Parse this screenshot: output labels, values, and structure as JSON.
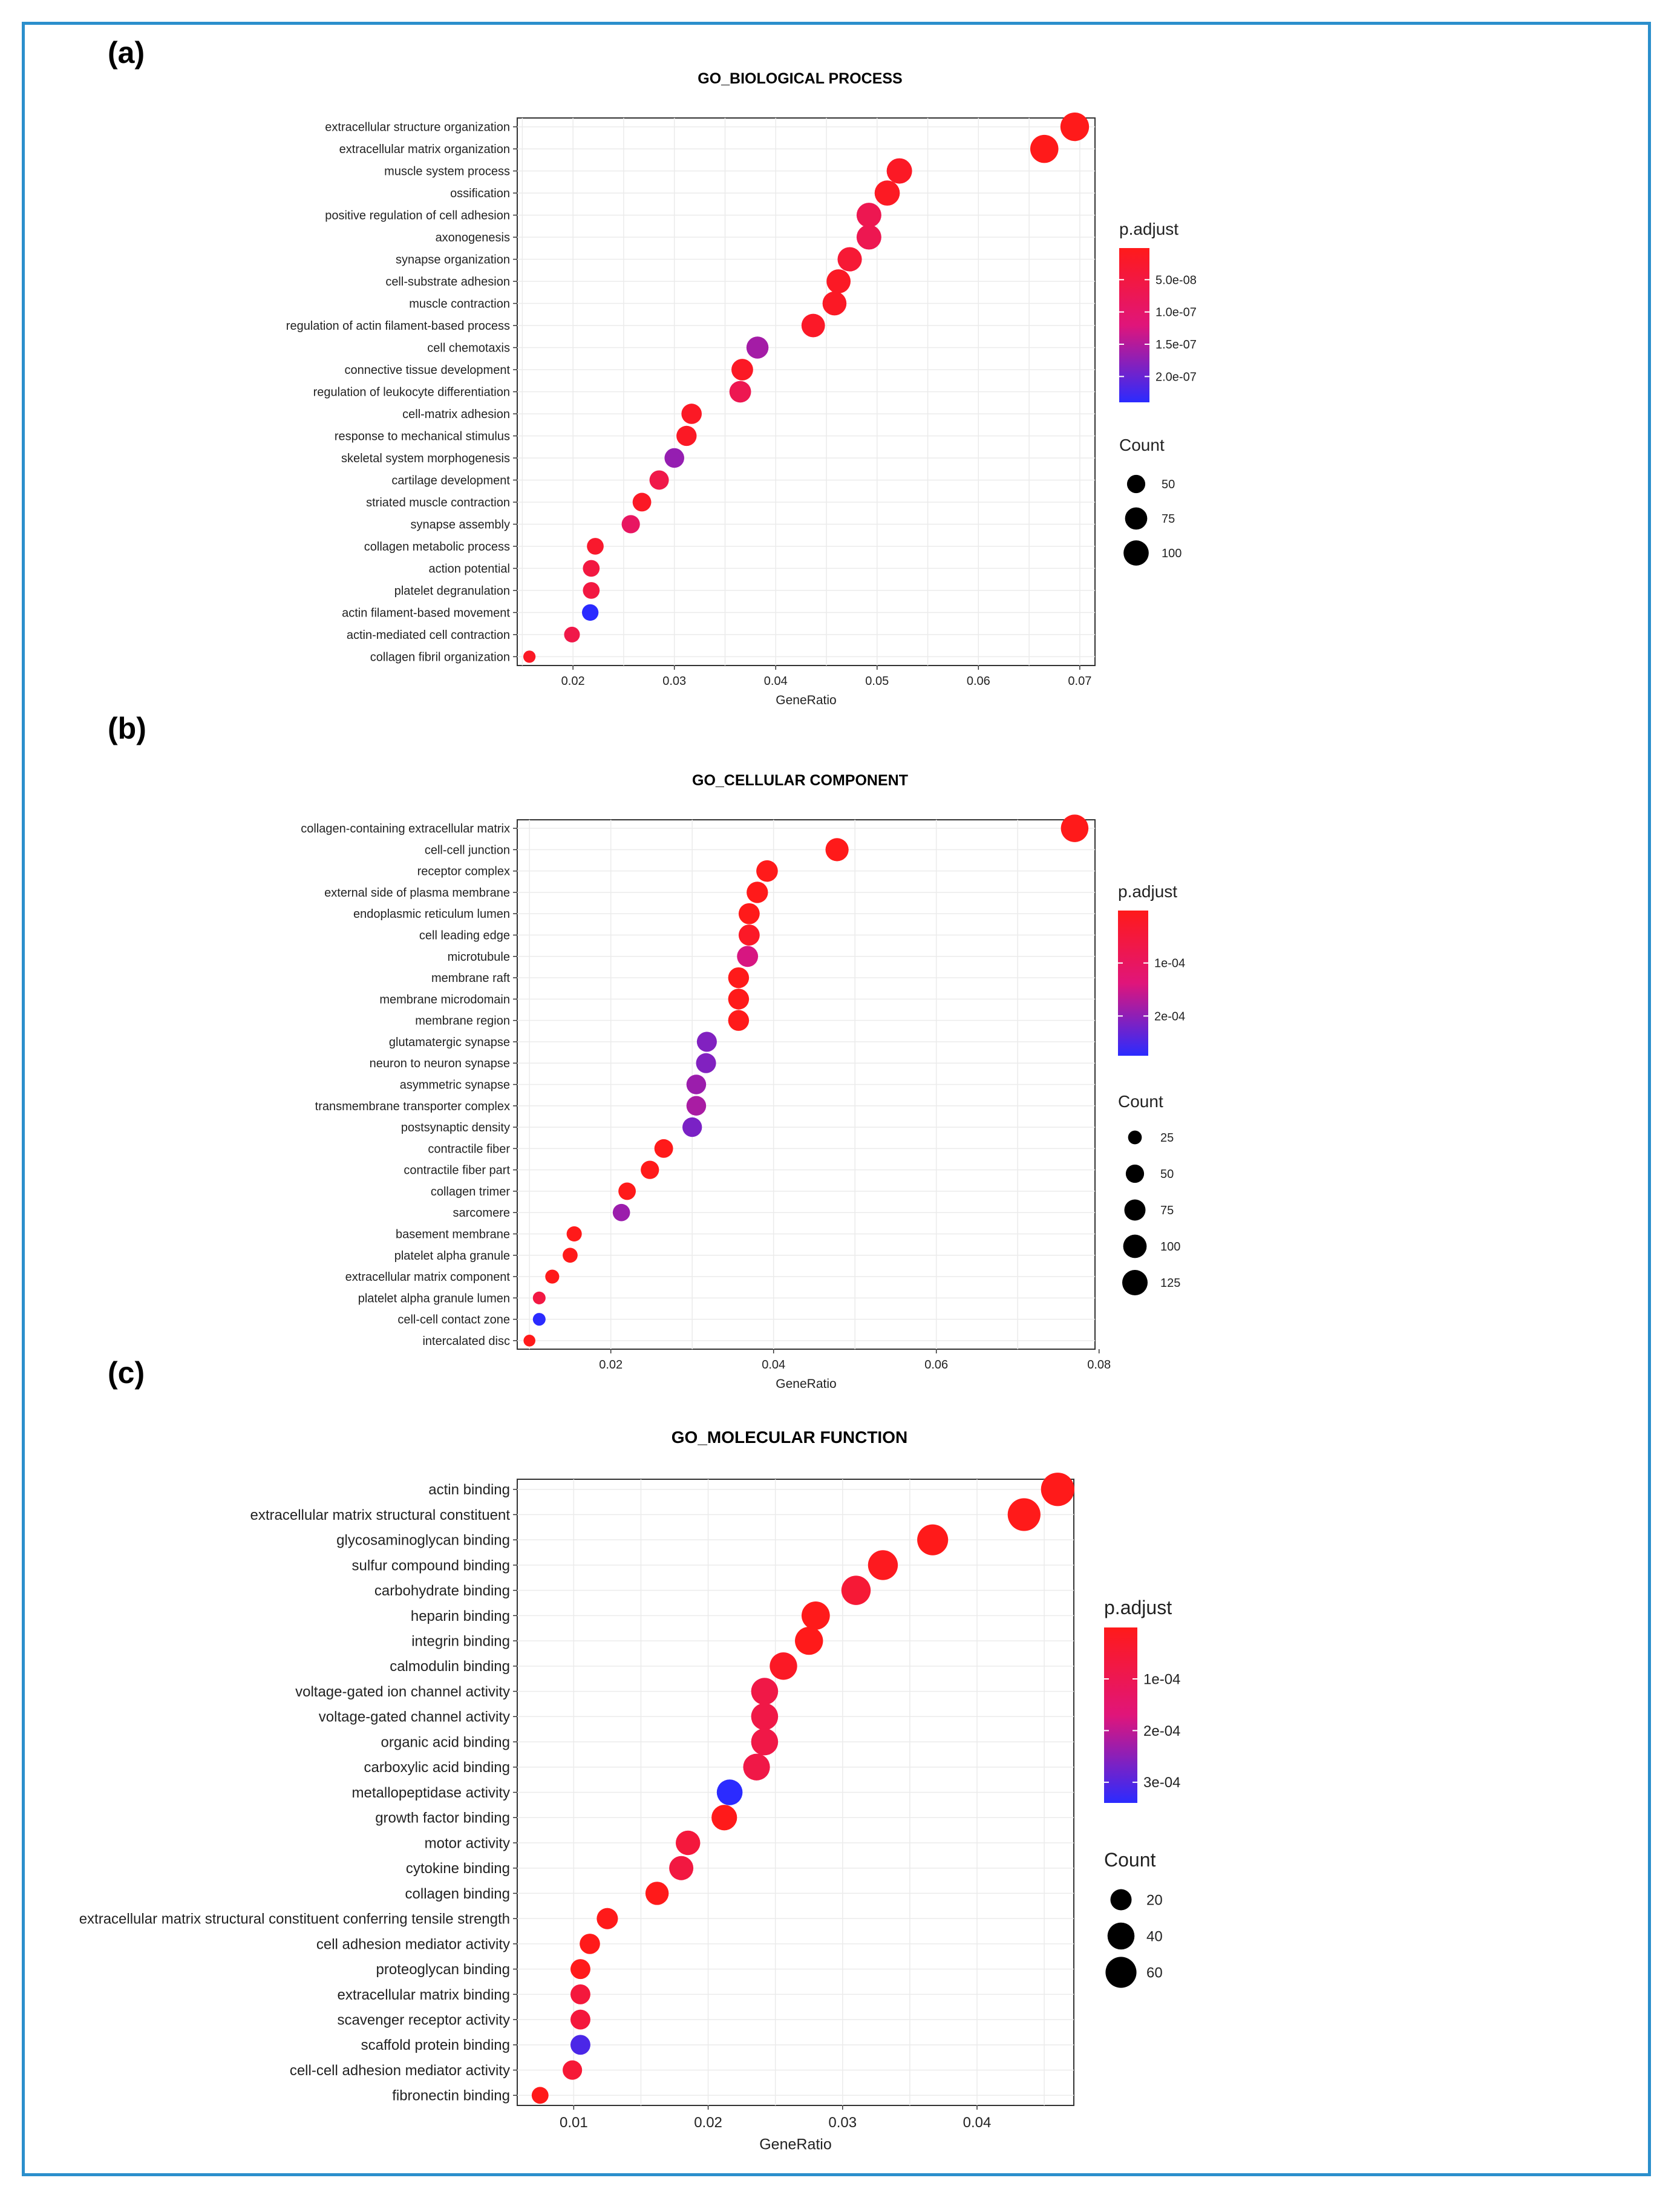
{
  "colors": {
    "border": "#2b8fcc",
    "low": "#ff1a1a",
    "high": "#2b2bff"
  },
  "panels": {
    "a": {
      "letter": "(a)",
      "title": "GO_BIOLOGICAL PROCESS",
      "xlabel": "GeneRatio",
      "xticks": [
        "0.02",
        "0.03",
        "0.04",
        "0.05",
        "0.06",
        "0.07"
      ],
      "padjust_title": "p.adjust",
      "padjust_ticks": [
        "5.0e-08",
        "1.0e-07",
        "1.5e-07",
        "2.0e-07"
      ],
      "count_title": "Count",
      "count_ticks": [
        "50",
        "75",
        "100"
      ]
    },
    "b": {
      "letter": "(b)",
      "title": "GO_CELLULAR COMPONENT",
      "xlabel": "GeneRatio",
      "xticks": [
        "0.02",
        "0.04",
        "0.06",
        "0.08"
      ],
      "padjust_title": "p.adjust",
      "padjust_ticks": [
        "1e-04",
        "2e-04"
      ],
      "count_title": "Count",
      "count_ticks": [
        "25",
        "50",
        "75",
        "100",
        "125"
      ]
    },
    "c": {
      "letter": "(c)",
      "title": "GO_MOLECULAR FUNCTION",
      "xlabel": "GeneRatio",
      "xticks": [
        "0.01",
        "0.02",
        "0.03",
        "0.04"
      ],
      "padjust_title": "p.adjust",
      "padjust_ticks": [
        "1e-04",
        "2e-04",
        "3e-04"
      ],
      "count_title": "Count",
      "count_ticks": [
        "20",
        "40",
        "60"
      ]
    }
  },
  "chart_data": [
    {
      "id": "a",
      "type": "scatter",
      "title": "GO_BIOLOGICAL PROCESS",
      "xlabel": "GeneRatio",
      "xlim": [
        0.0145,
        0.0715
      ],
      "xticks": [
        0.02,
        0.03,
        0.04,
        0.05,
        0.06,
        0.07
      ],
      "color_scale": {
        "min": 1e-09,
        "max": 2.4e-07,
        "ticks": [
          5e-08,
          1e-07,
          1.5e-07,
          2e-07
        ]
      },
      "size_scale": {
        "ticks": [
          50,
          75,
          100
        ]
      },
      "points": [
        {
          "term": "extracellular structure organization",
          "x": 0.0695,
          "count": 135,
          "padj": 1e-09
        },
        {
          "term": "extracellular matrix organization",
          "x": 0.0665,
          "count": 130,
          "padj": 1e-09
        },
        {
          "term": "muscle system process",
          "x": 0.0522,
          "count": 102,
          "padj": 1.5e-08
        },
        {
          "term": "ossification",
          "x": 0.051,
          "count": 100,
          "padj": 1.2e-08
        },
        {
          "term": "positive regulation of cell adhesion",
          "x": 0.0492,
          "count": 96,
          "padj": 7e-08
        },
        {
          "term": "axonogenesis",
          "x": 0.0492,
          "count": 96,
          "padj": 7e-08
        },
        {
          "term": "synapse organization",
          "x": 0.0473,
          "count": 92,
          "padj": 3.5e-08
        },
        {
          "term": "cell-substrate adhesion",
          "x": 0.0462,
          "count": 90,
          "padj": 1.5e-08
        },
        {
          "term": "muscle contraction",
          "x": 0.0458,
          "count": 89,
          "padj": 1.5e-08
        },
        {
          "term": "regulation of actin filament-based process",
          "x": 0.0437,
          "count": 85,
          "padj": 1.8e-08
        },
        {
          "term": "cell chemotaxis",
          "x": 0.0382,
          "count": 74,
          "padj": 1.6e-07
        },
        {
          "term": "connective tissue development",
          "x": 0.0367,
          "count": 71,
          "padj": 1.5e-08
        },
        {
          "term": "regulation of leukocyte differentiation",
          "x": 0.0365,
          "count": 71,
          "padj": 7e-08
        },
        {
          "term": "cell-matrix adhesion",
          "x": 0.0317,
          "count": 62,
          "padj": 1.5e-08
        },
        {
          "term": "response to mechanical stimulus",
          "x": 0.0312,
          "count": 61,
          "padj": 1.5e-08
        },
        {
          "term": "skeletal system morphogenesis",
          "x": 0.03,
          "count": 58,
          "padj": 1.7e-07
        },
        {
          "term": "cartilage development",
          "x": 0.0285,
          "count": 56,
          "padj": 6e-08
        },
        {
          "term": "striated muscle contraction",
          "x": 0.0268,
          "count": 52,
          "padj": 1.5e-08
        },
        {
          "term": "synapse assembly",
          "x": 0.0257,
          "count": 50,
          "padj": 9e-08
        },
        {
          "term": "collagen metabolic process",
          "x": 0.0222,
          "count": 43,
          "padj": 2.5e-08
        },
        {
          "term": "action potential",
          "x": 0.0218,
          "count": 43,
          "padj": 5e-08
        },
        {
          "term": "platelet degranulation",
          "x": 0.0218,
          "count": 43,
          "padj": 5e-08
        },
        {
          "term": "actin filament-based movement",
          "x": 0.0217,
          "count": 42,
          "padj": 2.4e-07
        },
        {
          "term": "actin-mediated cell contraction",
          "x": 0.0199,
          "count": 39,
          "padj": 6e-08
        },
        {
          "term": "collagen fibril organization",
          "x": 0.0157,
          "count": 30,
          "padj": 1.5e-08
        }
      ]
    },
    {
      "id": "b",
      "type": "scatter",
      "title": "GO_CELLULAR COMPONENT",
      "xlabel": "GeneRatio",
      "xlim": [
        0.0085,
        0.0795
      ],
      "xticks": [
        0.02,
        0.04,
        0.06,
        0.08
      ],
      "color_scale": {
        "min": 1e-06,
        "max": 0.000275,
        "ticks": [
          0.0001,
          0.0002
        ]
      },
      "size_scale": {
        "ticks": [
          25,
          50,
          75,
          100,
          125
        ]
      },
      "points": [
        {
          "term": "collagen-containing extracellular matrix",
          "x": 0.077,
          "count": 155,
          "padj": 1e-06
        },
        {
          "term": "cell-cell junction",
          "x": 0.0478,
          "count": 96,
          "padj": 1e-06
        },
        {
          "term": "receptor complex",
          "x": 0.0392,
          "count": 79,
          "padj": 1e-06
        },
        {
          "term": "external side of plasma membrane",
          "x": 0.038,
          "count": 77,
          "padj": 1e-06
        },
        {
          "term": "endoplasmic reticulum lumen",
          "x": 0.037,
          "count": 74,
          "padj": 1e-06
        },
        {
          "term": "cell leading edge",
          "x": 0.037,
          "count": 74,
          "padj": 2e-05
        },
        {
          "term": "microtubule",
          "x": 0.0368,
          "count": 74,
          "padj": 0.000145
        },
        {
          "term": "membrane raft",
          "x": 0.0357,
          "count": 72,
          "padj": 1e-06
        },
        {
          "term": "membrane microdomain",
          "x": 0.0357,
          "count": 72,
          "padj": 1e-06
        },
        {
          "term": "membrane region",
          "x": 0.0357,
          "count": 72,
          "padj": 1e-06
        },
        {
          "term": "glutamatergic synapse",
          "x": 0.0318,
          "count": 64,
          "padj": 0.00021
        },
        {
          "term": "neuron to neuron synapse",
          "x": 0.0317,
          "count": 64,
          "padj": 0.00021
        },
        {
          "term": "asymmetric synapse",
          "x": 0.0305,
          "count": 61,
          "padj": 0.00019
        },
        {
          "term": "transmembrane transporter complex",
          "x": 0.0305,
          "count": 61,
          "padj": 0.00018
        },
        {
          "term": "postsynaptic density",
          "x": 0.03,
          "count": 60,
          "padj": 0.000215
        },
        {
          "term": "contractile fiber",
          "x": 0.0265,
          "count": 53,
          "padj": 1e-06
        },
        {
          "term": "contractile fiber part",
          "x": 0.0248,
          "count": 50,
          "padj": 1e-06
        },
        {
          "term": "collagen trimer",
          "x": 0.022,
          "count": 44,
          "padj": 1e-06
        },
        {
          "term": "sarcomere",
          "x": 0.0213,
          "count": 43,
          "padj": 0.00019
        },
        {
          "term": "basement membrane",
          "x": 0.0155,
          "count": 31,
          "padj": 1e-06
        },
        {
          "term": "platelet alpha granule",
          "x": 0.015,
          "count": 30,
          "padj": 1e-06
        },
        {
          "term": "extracellular matrix component",
          "x": 0.0128,
          "count": 26,
          "padj": 1e-06
        },
        {
          "term": "platelet alpha granule lumen",
          "x": 0.0112,
          "count": 22,
          "padj": 6e-05
        },
        {
          "term": "cell-cell contact zone",
          "x": 0.0112,
          "count": 22,
          "padj": 0.000275
        },
        {
          "term": "intercalated disc",
          "x": 0.01,
          "count": 20,
          "padj": 1e-06
        }
      ]
    },
    {
      "id": "c",
      "type": "scatter",
      "title": "GO_MOLECULAR FUNCTION",
      "xlabel": "GeneRatio",
      "xlim": [
        0.0058,
        0.0472
      ],
      "xticks": [
        0.01,
        0.02,
        0.03,
        0.04
      ],
      "color_scale": {
        "min": 5e-07,
        "max": 0.00034,
        "ticks": [
          0.0001,
          0.0002,
          0.0003
        ]
      },
      "size_scale": {
        "ticks": [
          20,
          40,
          60
        ]
      },
      "points": [
        {
          "term": "actin binding",
          "x": 0.046,
          "count": 75,
          "padj": 5e-07
        },
        {
          "term": "extracellular matrix structural constituent",
          "x": 0.0435,
          "count": 71,
          "padj": 5e-07
        },
        {
          "term": "glycosaminoglycan binding",
          "x": 0.0367,
          "count": 60,
          "padj": 5e-07
        },
        {
          "term": "sulfur compound binding",
          "x": 0.033,
          "count": 54,
          "padj": 1e-05
        },
        {
          "term": "carbohydrate binding",
          "x": 0.031,
          "count": 51,
          "padj": 5e-05
        },
        {
          "term": "heparin binding",
          "x": 0.028,
          "count": 46,
          "padj": 5e-07
        },
        {
          "term": "integrin binding",
          "x": 0.0275,
          "count": 45,
          "padj": 5e-07
        },
        {
          "term": "calmodulin binding",
          "x": 0.0256,
          "count": 42,
          "padj": 2e-05
        },
        {
          "term": "voltage-gated ion channel activity",
          "x": 0.0242,
          "count": 40,
          "padj": 8e-05
        },
        {
          "term": "voltage-gated channel activity",
          "x": 0.0242,
          "count": 40,
          "padj": 8e-05
        },
        {
          "term": "organic acid binding",
          "x": 0.0242,
          "count": 40,
          "padj": 8e-05
        },
        {
          "term": "carboxylic acid binding",
          "x": 0.0236,
          "count": 39,
          "padj": 8e-05
        },
        {
          "term": "metallopeptidase activity",
          "x": 0.0216,
          "count": 35,
          "padj": 0.00034
        },
        {
          "term": "growth factor binding",
          "x": 0.0212,
          "count": 34,
          "padj": 5e-07
        },
        {
          "term": "motor activity",
          "x": 0.0185,
          "count": 30,
          "padj": 6e-05
        },
        {
          "term": "cytokine binding",
          "x": 0.018,
          "count": 29,
          "padj": 7e-05
        },
        {
          "term": "collagen binding",
          "x": 0.0162,
          "count": 26,
          "padj": 5e-07
        },
        {
          "term": "extracellular matrix structural constituent conferring tensile strength",
          "x": 0.0125,
          "count": 20,
          "padj": 5e-07
        },
        {
          "term": "cell adhesion mediator activity",
          "x": 0.0112,
          "count": 18,
          "padj": 5e-07
        },
        {
          "term": "proteoglycan binding",
          "x": 0.0105,
          "count": 17,
          "padj": 5e-07
        },
        {
          "term": "extracellular matrix binding",
          "x": 0.0105,
          "count": 17,
          "padj": 6e-05
        },
        {
          "term": "scavenger receptor activity",
          "x": 0.0105,
          "count": 17,
          "padj": 6e-05
        },
        {
          "term": "scaffold protein binding",
          "x": 0.0105,
          "count": 17,
          "padj": 0.00031
        },
        {
          "term": "cell-cell adhesion mediator activity",
          "x": 0.0099,
          "count": 16,
          "padj": 5e-05
        },
        {
          "term": "fibronectin binding",
          "x": 0.0075,
          "count": 12,
          "padj": 5e-07
        }
      ]
    }
  ]
}
